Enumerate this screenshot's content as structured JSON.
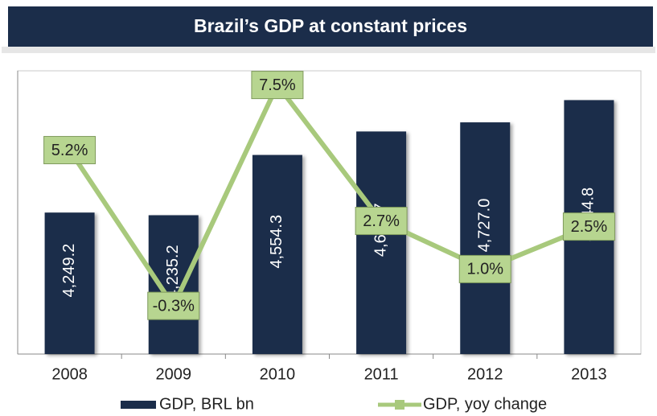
{
  "chart_data": {
    "type": "bar_line",
    "title": "Brazil’s GDP at constant prices",
    "categories": [
      "2008",
      "2009",
      "2010",
      "2011",
      "2012",
      "2013"
    ],
    "series": [
      {
        "name": "GDP, BRL bn",
        "type": "bar",
        "color": "#1b2d4a",
        "values": [
          4249.2,
          4235.2,
          4554.3,
          4678.7,
          4727.0,
          4844.8
        ],
        "value_labels": [
          "4,249.2",
          "4,235.2",
          "4,554.3",
          "4,678.7",
          "4,727.0",
          "4,844.8"
        ]
      },
      {
        "name": "GDP, yoy change",
        "type": "line",
        "axis": "y2",
        "color": "#a8c97c",
        "values": [
          5.2,
          -0.3,
          7.5,
          2.7,
          1.0,
          2.5
        ],
        "value_labels": [
          "5.2%",
          "-0.3%",
          "7.5%",
          "2.7%",
          "1.0%",
          "2.5%"
        ]
      }
    ],
    "ylim": [
      3500,
      5000
    ],
    "y2lim": [
      -2,
      8
    ]
  }
}
